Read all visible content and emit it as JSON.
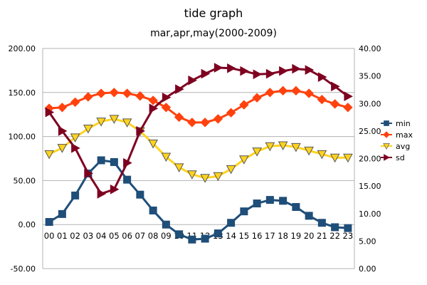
{
  "chart_data": {
    "type": "line",
    "title": "tide graph",
    "subtitle": "mar,apr,may(2000-2009)",
    "categories": [
      "00",
      "01",
      "02",
      "03",
      "04",
      "05",
      "06",
      "07",
      "08",
      "09",
      "10",
      "11",
      "12",
      "13",
      "14",
      "15",
      "16",
      "17",
      "18",
      "19",
      "20",
      "21",
      "22",
      "23"
    ],
    "y_left": {
      "min": -50,
      "max": 200,
      "step": 50,
      "tick_labels": [
        "-50.00",
        "0.00",
        "50.00",
        "100.00",
        "150.00",
        "200.00"
      ]
    },
    "y_right": {
      "min": 0,
      "max": 40,
      "step": 5,
      "tick_labels": [
        "0.00",
        "5.00",
        "10.00",
        "15.00",
        "20.00",
        "25.00",
        "30.00",
        "35.00",
        "40.00"
      ]
    },
    "grid": true,
    "legend_position": "right",
    "series": [
      {
        "name": "min",
        "axis": "left",
        "color": "#1f4e79",
        "marker": "square",
        "values": [
          3,
          12,
          33,
          58,
          73,
          71,
          51,
          34,
          16,
          0,
          -11,
          -17,
          -16,
          -10,
          2,
          15,
          24,
          28,
          27,
          20,
          10,
          2,
          -3,
          -4
        ]
      },
      {
        "name": "max",
        "axis": "left",
        "color": "#ff420e",
        "marker": "diamond",
        "values": [
          132,
          133,
          139,
          145,
          149,
          150,
          149,
          146,
          141,
          133,
          122,
          116,
          116,
          120,
          127,
          136,
          144,
          150,
          152,
          152,
          149,
          142,
          137,
          133
        ]
      },
      {
        "name": "avg",
        "axis": "left",
        "color": "#ffd320",
        "marker": "triangle-down",
        "values": [
          80,
          87,
          99,
          109,
          117,
          120,
          116,
          106,
          92,
          77,
          65,
          57,
          53,
          55,
          63,
          74,
          83,
          89,
          90,
          88,
          84,
          80,
          76,
          76
        ]
      },
      {
        "name": "sd",
        "axis": "right",
        "color": "#7e0021",
        "marker": "triangle-right",
        "values": [
          28.4,
          25.0,
          21.9,
          17.3,
          13.6,
          14.4,
          19.2,
          25.0,
          29.1,
          31.1,
          32.6,
          34.2,
          35.4,
          36.5,
          36.4,
          35.9,
          35.3,
          35.4,
          35.9,
          36.3,
          36.1,
          34.8,
          33.1,
          31.3
        ]
      }
    ]
  }
}
